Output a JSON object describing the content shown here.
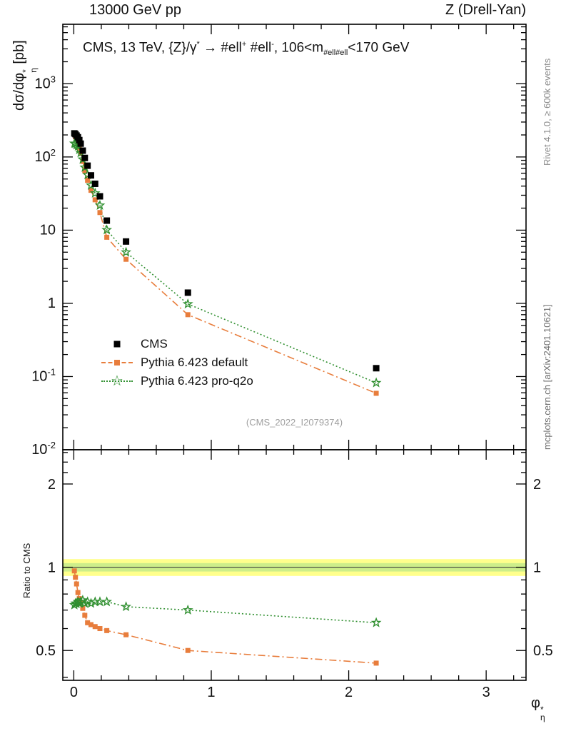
{
  "header": {
    "left": "13000 GeV pp",
    "right": "Z (Drell-Yan)"
  },
  "annotation": {
    "p1": "CMS, 13 TeV, {Z}/γ",
    "s1": "*",
    "p2": " →  #ell",
    "s2": "+",
    "p3": " #ell",
    "s3": "-",
    "p4": ", 106<m",
    "sub1": "#ell#ell",
    "p5": "<170 GeV"
  },
  "axes": {
    "y_label": {
      "p1": "dσ/dφ",
      "sup": "*",
      "sub": "η",
      "p2": " [pb]"
    },
    "ratio_label": "Ratio to CMS",
    "x_label": {
      "p1": "φ",
      "sup": "*",
      "sub": "η"
    }
  },
  "legend": {
    "items": [
      {
        "label": "CMS",
        "marker": "filled-square",
        "color": "#000000",
        "line": "none"
      },
      {
        "label": "Pythia 6.423 default",
        "marker": "filled-square",
        "color": "#e87d3c",
        "line": "dashdot"
      },
      {
        "label": "Pythia 6.423 pro-q2o",
        "marker": "open-star",
        "color": "#2f8f2f",
        "line": "dotted"
      }
    ]
  },
  "icons": {
    "open_star": "☆"
  },
  "watermark": "(CMS_2022_I2079374)",
  "side_notes": {
    "rivet": "Rivet 4.1.0, ≥ 600k events",
    "mcplots": "mcplots.cern.ch [arXiv:2401.10621]"
  },
  "chart_data": {
    "type": "scatter",
    "title": "Z (Drell-Yan) differential cross section vs phi*_eta, 13000 GeV pp",
    "x": [
      0.004,
      0.012,
      0.02,
      0.03,
      0.04,
      0.05,
      0.065,
      0.08,
      0.1,
      0.125,
      0.155,
      0.19,
      0.24,
      0.38,
      0.83,
      2.2
    ],
    "top_panel": {
      "y_label": "dsigma/dphi*_eta [pb]",
      "x_range": [
        -0.08,
        3.29
      ],
      "y_range": [
        0.01,
        6500
      ],
      "y_scale": "log",
      "x_ticks": [
        0,
        1,
        2,
        3
      ],
      "x_minor_step": 0.2,
      "y_ticks": [
        {
          "v": 1000,
          "base": "10",
          "exp": "3"
        },
        {
          "v": 100,
          "base": "10",
          "exp": "2"
        },
        {
          "v": 10,
          "base": "10",
          "exp": ""
        },
        {
          "v": 1,
          "base": "1",
          "exp": ""
        },
        {
          "v": 0.1,
          "base": "10",
          "exp": "-1"
        },
        {
          "v": 0.01,
          "base": "10",
          "exp": "-2"
        }
      ],
      "series": [
        {
          "name": "CMS",
          "color": "#000000",
          "marker": "filled-square",
          "line": "none",
          "y": [
            210,
            205,
            196,
            186,
            170,
            152,
            122,
            97,
            76,
            56,
            43,
            29,
            13.5,
            7.0,
            1.4,
            0.13
          ]
        },
        {
          "name": "Pythia 6.423 default",
          "color": "#e87d3c",
          "marker": "filled-square",
          "line": "dashdot",
          "y": [
            204,
            189,
            171,
            151,
            131,
            112,
            87,
            65,
            48,
            35,
            26,
            17.4,
            8.0,
            4.0,
            0.7,
            0.059
          ]
        },
        {
          "name": "Pythia 6.423 pro-q2o",
          "color": "#2f8f2f",
          "marker": "open-star",
          "line": "dotted",
          "y": [
            153,
            152,
            145,
            140,
            126,
            114,
            93,
            72,
            57,
            41,
            32,
            21.8,
            10.1,
            5.0,
            0.98,
            0.082
          ]
        }
      ]
    },
    "ratio_panel": {
      "y_label": "Ratio to CMS",
      "y_range": [
        0.39,
        2.66
      ],
      "y_scale": "log",
      "band_outer": {
        "lo": 0.93,
        "hi": 1.07,
        "color": "#ffff8c"
      },
      "band_inner": {
        "lo": 0.965,
        "hi": 1.035,
        "color": "#cdee8a"
      },
      "y_ticks": [
        {
          "v": 0.5,
          "label": "0.5"
        },
        {
          "v": 1,
          "label": "1"
        },
        {
          "v": 2,
          "label": "2"
        }
      ],
      "series": [
        {
          "name": "Pythia 6.423 default",
          "color": "#e87d3c",
          "marker": "filled-square",
          "line": "dashdot",
          "y": [
            0.97,
            0.92,
            0.87,
            0.81,
            0.77,
            0.74,
            0.71,
            0.67,
            0.63,
            0.62,
            0.61,
            0.6,
            0.59,
            0.57,
            0.5,
            0.45
          ]
        },
        {
          "name": "Pythia 6.423 pro-q2o",
          "color": "#2f8f2f",
          "marker": "open-star",
          "line": "dotted",
          "y": [
            0.73,
            0.74,
            0.74,
            0.75,
            0.74,
            0.75,
            0.76,
            0.74,
            0.75,
            0.74,
            0.75,
            0.75,
            0.75,
            0.72,
            0.7,
            0.63
          ]
        }
      ]
    }
  }
}
